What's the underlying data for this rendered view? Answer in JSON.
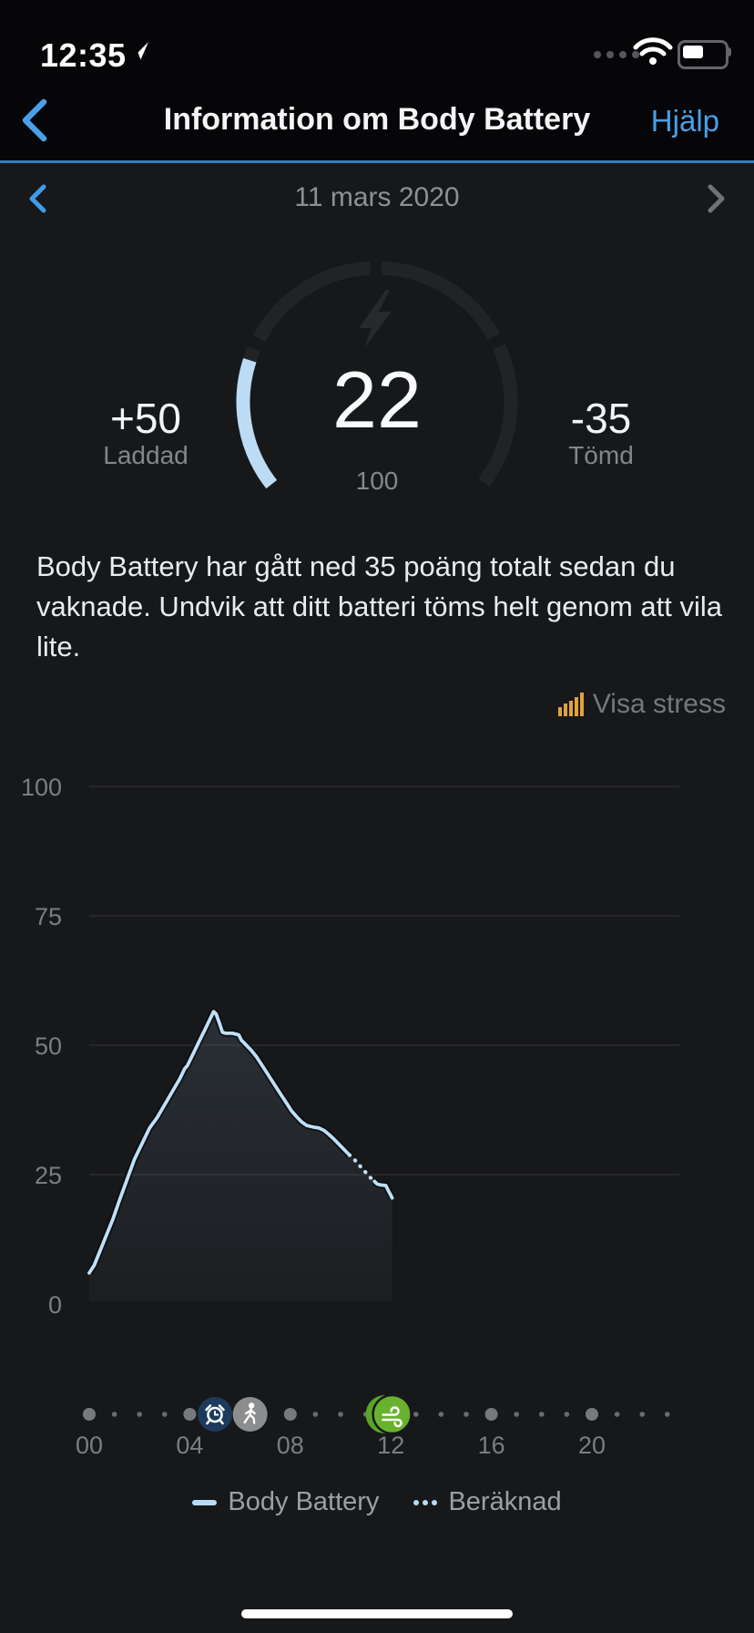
{
  "status_bar": {
    "time": "12:35",
    "icons": [
      "location-arrow",
      "cellular-dots",
      "wifi",
      "battery"
    ],
    "battery_percent": 50
  },
  "nav": {
    "title": "Information om Body Battery",
    "help_label": "Hjälp"
  },
  "date_nav": {
    "date": "11 mars 2020"
  },
  "gauge": {
    "value": 22,
    "value_display": "22",
    "scale_max": "100",
    "percent": 22,
    "charged_value": "+50",
    "charged_label": "Laddad",
    "drained_value": "-35",
    "drained_label": "Tömd"
  },
  "description": "Body Battery har gått ned 35 poäng totalt sedan du vaknade. Undvik att ditt batteri töms helt genom att vila lite.",
  "stress_toggle": {
    "label": "Visa stress"
  },
  "chart_data": {
    "type": "line",
    "x_unit": "hour",
    "x_range": [
      0,
      24
    ],
    "y_range": [
      0,
      100
    ],
    "y_ticks": [
      0,
      25,
      50,
      75,
      100
    ],
    "x_tick_hours": [
      0,
      4,
      8,
      12,
      16,
      20
    ],
    "x_tick_labels": [
      "00",
      "04",
      "08",
      "12",
      "16",
      "20"
    ],
    "grid": "horizontal",
    "legend_position": "bottom",
    "series": [
      {
        "name": "Body Battery",
        "style": "solid",
        "color": "#bedff7",
        "points": [
          [
            0,
            6
          ],
          [
            0.2,
            7.5
          ],
          [
            0.45,
            10.5
          ],
          [
            0.7,
            13.5
          ],
          [
            0.95,
            16.5
          ],
          [
            1.2,
            20
          ],
          [
            1.5,
            24
          ],
          [
            1.8,
            28
          ],
          [
            2.1,
            31
          ],
          [
            2.4,
            34
          ],
          [
            2.7,
            36
          ],
          [
            3,
            38.5
          ],
          [
            3.3,
            41
          ],
          [
            3.6,
            43.5
          ],
          [
            3.8,
            45.5
          ],
          [
            3.9,
            46
          ],
          [
            4.05,
            47.5
          ],
          [
            4.2,
            49
          ],
          [
            4.4,
            51
          ],
          [
            4.6,
            53
          ],
          [
            4.8,
            55
          ],
          [
            4.95,
            56.5
          ],
          [
            5.05,
            56
          ],
          [
            5.2,
            54
          ],
          [
            5.3,
            52.5
          ],
          [
            5.45,
            52.3
          ],
          [
            5.7,
            52.3
          ],
          [
            5.95,
            52
          ],
          [
            6.05,
            51
          ],
          [
            6.25,
            50
          ],
          [
            6.45,
            49
          ],
          [
            6.65,
            47.8
          ],
          [
            6.85,
            46.3
          ],
          [
            7.05,
            44.8
          ],
          [
            7.25,
            43.3
          ],
          [
            7.45,
            41.8
          ],
          [
            7.65,
            40.3
          ],
          [
            7.85,
            38.8
          ],
          [
            8.05,
            37.3
          ],
          [
            8.25,
            36.2
          ],
          [
            8.45,
            35.2
          ],
          [
            8.65,
            34.5
          ],
          [
            8.9,
            34.2
          ],
          [
            9.15,
            34
          ],
          [
            9.35,
            33.5
          ],
          [
            9.55,
            32.7
          ],
          [
            9.75,
            31.8
          ],
          [
            9.95,
            30.8
          ],
          [
            10.15,
            29.8
          ],
          [
            10.35,
            28.8
          ]
        ]
      },
      {
        "name": "Beräknad",
        "style": "dotted",
        "color": "#bedff7",
        "points": [
          [
            10.35,
            28.8
          ],
          [
            10.55,
            27.9
          ],
          [
            10.75,
            26.8
          ],
          [
            10.95,
            25.7
          ],
          [
            11.15,
            24.6
          ],
          [
            11.35,
            23.7
          ]
        ]
      },
      {
        "name": "Body Battery",
        "style": "solid",
        "color": "#bedff7",
        "points": [
          [
            11.35,
            23.7
          ],
          [
            11.45,
            23.2
          ],
          [
            11.6,
            23
          ],
          [
            11.8,
            22.9
          ],
          [
            11.9,
            21.9
          ],
          [
            12,
            21
          ],
          [
            12.05,
            20.5
          ]
        ]
      }
    ],
    "events": [
      {
        "hour": 5.0,
        "icon": "alarm-icon",
        "color": "#1d3a5c"
      },
      {
        "hour": 6.4,
        "icon": "walk-icon",
        "color": "#8c8d8f"
      },
      {
        "hour": 12.05,
        "icon": "wind-icon",
        "color": "#68b22f"
      }
    ],
    "timeline_dots": {
      "hours": 24,
      "major_every": 4
    }
  },
  "legend": [
    {
      "label": "Body Battery",
      "swatch": "line"
    },
    {
      "label": "Beräknad",
      "swatch": "dots"
    }
  ],
  "colors": {
    "accent_blue": "#4aa0e8",
    "divider_blue": "#2f7ec4",
    "gauge_fill": "#bcdcf5",
    "gauge_track": "#212427",
    "chart_line": "#bedff7",
    "stress_icon": "#e0a23d",
    "event_alarm_bg": "#1d3a5c",
    "event_walk_bg": "#8c8d8f",
    "event_wind_bg": "#68b22f",
    "header_bg": "#060608",
    "page_bg": "#17181a"
  }
}
